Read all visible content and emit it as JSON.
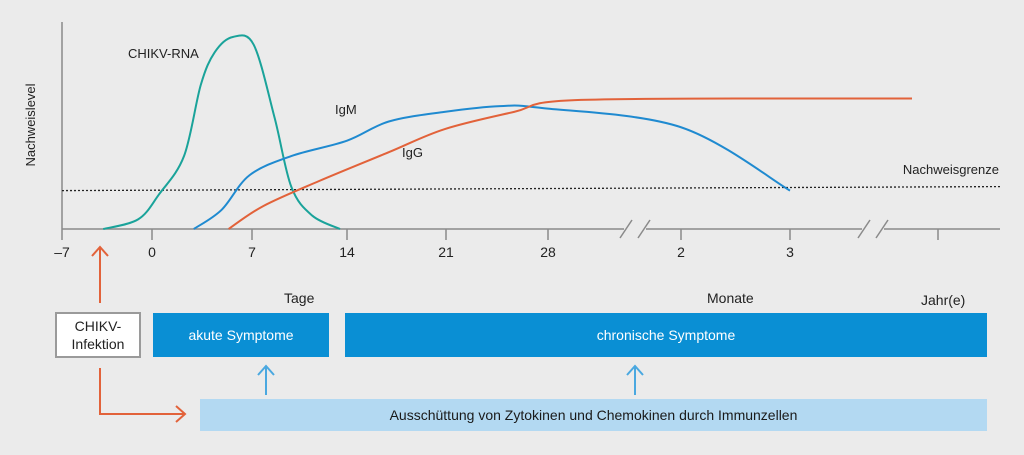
{
  "chart_data": {
    "type": "line",
    "ylabel": "Nachweislevel",
    "x_ticks": [
      "–7",
      "0",
      "7",
      "14",
      "21",
      "28",
      "2",
      "3"
    ],
    "x_segments": [
      {
        "label": "Tage",
        "unit": "days"
      },
      {
        "label": "Monate",
        "unit": "months"
      },
      {
        "label": "Jahr(e)",
        "unit": "years"
      }
    ],
    "threshold": {
      "label": "Nachweisgrenze",
      "level": 0.2
    },
    "series": [
      {
        "name": "CHIKV-RNA",
        "color": "#1aa39a",
        "points": [
          [
            -3.5,
            0
          ],
          [
            -1,
            0.05
          ],
          [
            0.5,
            0.18
          ],
          [
            2.3,
            0.38
          ],
          [
            3.5,
            0.75
          ],
          [
            4.5,
            0.92
          ],
          [
            5.8,
            1.0
          ],
          [
            7.3,
            0.96
          ],
          [
            8.8,
            0.58
          ],
          [
            10,
            0.22
          ],
          [
            11.5,
            0.07
          ],
          [
            13.5,
            0
          ]
        ]
      },
      {
        "name": "IgM",
        "color": "#1f8ad0",
        "points": [
          [
            3,
            0
          ],
          [
            5,
            0.1
          ],
          [
            7,
            0.28
          ],
          [
            10,
            0.38
          ],
          [
            14,
            0.46
          ],
          [
            17,
            0.56
          ],
          [
            21,
            0.61
          ],
          [
            25,
            0.64
          ],
          [
            28,
            0.63
          ],
          [
            "2 Monate",
            0.53
          ],
          [
            "3 Monate",
            0.2
          ]
        ]
      },
      {
        "name": "IgG",
        "color": "#e2623a",
        "points": [
          [
            5.5,
            0
          ],
          [
            8,
            0.12
          ],
          [
            12,
            0.25
          ],
          [
            17,
            0.4
          ],
          [
            21,
            0.52
          ],
          [
            26,
            0.61
          ],
          [
            30,
            0.67
          ],
          [
            "3 Monate",
            0.68
          ],
          [
            "Jahr(e)",
            0.68
          ]
        ]
      }
    ]
  },
  "boxes": {
    "infection": "CHIKV-\nInfektion",
    "acute": "akute Symptome",
    "chronic": "chronische Symptome",
    "cytokines": "Ausschüttung von Zytokinen und Chemokinen durch Immunzellen"
  },
  "colors": {
    "arrow_orange": "#e2623a",
    "arrow_blue": "#4aa8e0",
    "box_blue": "#0a8fd4",
    "box_light_blue": "#b3d9f2",
    "background": "#ebebeb"
  }
}
